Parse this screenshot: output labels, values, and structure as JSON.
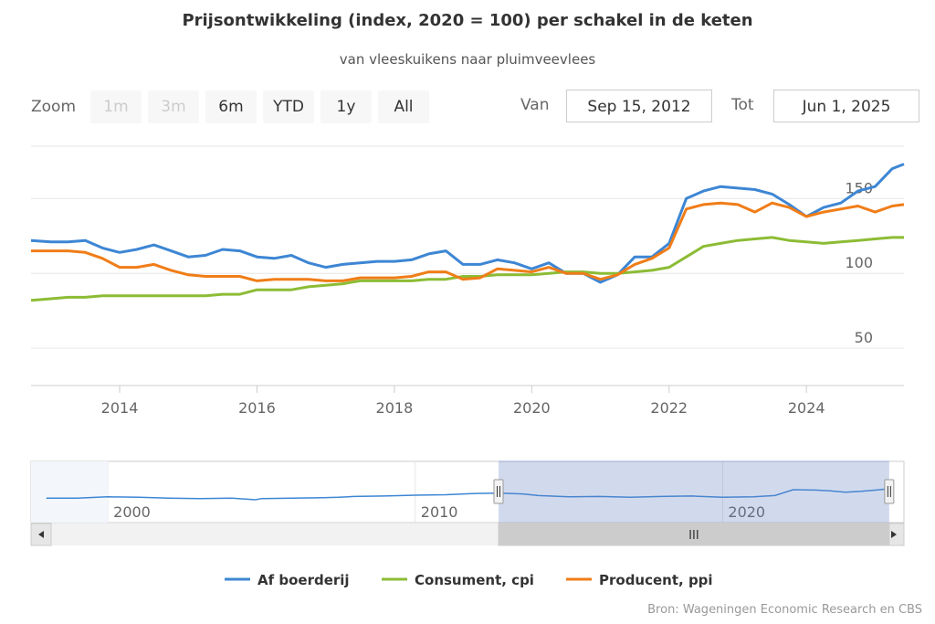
{
  "header": {
    "title": "Prijsontwikkeling (index, 2020 = 100) per schakel in de keten",
    "subtitle": "van vleeskuikens naar pluimveevlees"
  },
  "range_selector": {
    "zoom_label": "Zoom",
    "buttons": [
      {
        "label": "1m",
        "enabled": false
      },
      {
        "label": "3m",
        "enabled": false
      },
      {
        "label": "6m",
        "enabled": true
      },
      {
        "label": "YTD",
        "enabled": true
      },
      {
        "label": "1y",
        "enabled": true
      },
      {
        "label": "All",
        "enabled": true
      }
    ],
    "from_label": "Van",
    "from_value": "Sep 15, 2012",
    "to_label": "Tot",
    "to_value": "Jun 1, 2025"
  },
  "navigator": {
    "year_labels": [
      "2000",
      "2010",
      "2020"
    ],
    "scrollbar_grip": "III"
  },
  "credits": "Bron: Wageningen Economic Research en CBS",
  "colors": {
    "af_boerderij": "#3d86d4",
    "consument": "#8cbc35",
    "producent": "#f07d18",
    "grid": "#e6e6e6",
    "navigator_mask": "rgba(102,133,194,0.3)"
  },
  "chart_data": {
    "type": "line",
    "title": "Prijsontwikkeling (index, 2020 = 100) per schakel in de keten",
    "subtitle": "van vleeskuikens naar pluimveevlees",
    "xlim": [
      2012.71,
      2025.42
    ],
    "ylim": [
      25,
      185
    ],
    "x_tick_labels": [
      "2014",
      "2016",
      "2018",
      "2020",
      "2022",
      "2024"
    ],
    "y_tick_labels": [
      "50",
      "100",
      "150"
    ],
    "legend_position": "bottom-center",
    "grid": true,
    "series": [
      {
        "name": "Af boerderij",
        "points": [
          [
            2012.71,
            122
          ],
          [
            2013.0,
            121
          ],
          [
            2013.25,
            121
          ],
          [
            2013.5,
            122
          ],
          [
            2013.75,
            117
          ],
          [
            2014.0,
            114
          ],
          [
            2014.25,
            116
          ],
          [
            2014.5,
            119
          ],
          [
            2014.75,
            115
          ],
          [
            2015.0,
            111
          ],
          [
            2015.25,
            112
          ],
          [
            2015.5,
            116
          ],
          [
            2015.75,
            115
          ],
          [
            2016.0,
            111
          ],
          [
            2016.25,
            110
          ],
          [
            2016.5,
            112
          ],
          [
            2016.75,
            107
          ],
          [
            2017.0,
            104
          ],
          [
            2017.25,
            106
          ],
          [
            2017.5,
            107
          ],
          [
            2017.75,
            108
          ],
          [
            2018.0,
            108
          ],
          [
            2018.25,
            109
          ],
          [
            2018.5,
            113
          ],
          [
            2018.75,
            115
          ],
          [
            2019.0,
            106
          ],
          [
            2019.25,
            106
          ],
          [
            2019.5,
            109
          ],
          [
            2019.75,
            107
          ],
          [
            2020.0,
            103
          ],
          [
            2020.25,
            107
          ],
          [
            2020.5,
            100
          ],
          [
            2020.75,
            100
          ],
          [
            2021.0,
            94
          ],
          [
            2021.25,
            99
          ],
          [
            2021.5,
            111
          ],
          [
            2021.75,
            111
          ],
          [
            2022.0,
            120
          ],
          [
            2022.25,
            150
          ],
          [
            2022.5,
            155
          ],
          [
            2022.75,
            158
          ],
          [
            2023.0,
            157
          ],
          [
            2023.25,
            156
          ],
          [
            2023.5,
            153
          ],
          [
            2023.75,
            146
          ],
          [
            2024.0,
            138
          ],
          [
            2024.25,
            144
          ],
          [
            2024.5,
            147
          ],
          [
            2024.75,
            155
          ],
          [
            2025.0,
            158
          ],
          [
            2025.25,
            170
          ],
          [
            2025.42,
            173
          ]
        ]
      },
      {
        "name": "Consument, cpi",
        "points": [
          [
            2012.71,
            82
          ],
          [
            2013.0,
            83
          ],
          [
            2013.25,
            84
          ],
          [
            2013.5,
            84
          ],
          [
            2013.75,
            85
          ],
          [
            2014.0,
            85
          ],
          [
            2014.25,
            85
          ],
          [
            2014.5,
            85
          ],
          [
            2014.75,
            85
          ],
          [
            2015.0,
            85
          ],
          [
            2015.25,
            85
          ],
          [
            2015.5,
            86
          ],
          [
            2015.75,
            86
          ],
          [
            2016.0,
            89
          ],
          [
            2016.25,
            89
          ],
          [
            2016.5,
            89
          ],
          [
            2016.75,
            91
          ],
          [
            2017.0,
            92
          ],
          [
            2017.25,
            93
          ],
          [
            2017.5,
            95
          ],
          [
            2017.75,
            95
          ],
          [
            2018.0,
            95
          ],
          [
            2018.25,
            95
          ],
          [
            2018.5,
            96
          ],
          [
            2018.75,
            96
          ],
          [
            2019.0,
            98
          ],
          [
            2019.25,
            98
          ],
          [
            2019.5,
            99
          ],
          [
            2019.75,
            99
          ],
          [
            2020.0,
            99
          ],
          [
            2020.25,
            100
          ],
          [
            2020.5,
            101
          ],
          [
            2020.75,
            101
          ],
          [
            2021.0,
            100
          ],
          [
            2021.25,
            100
          ],
          [
            2021.5,
            101
          ],
          [
            2021.75,
            102
          ],
          [
            2022.0,
            104
          ],
          [
            2022.25,
            111
          ],
          [
            2022.5,
            118
          ],
          [
            2022.75,
            120
          ],
          [
            2023.0,
            122
          ],
          [
            2023.25,
            123
          ],
          [
            2023.5,
            124
          ],
          [
            2023.75,
            122
          ],
          [
            2024.0,
            121
          ],
          [
            2024.25,
            120
          ],
          [
            2024.5,
            121
          ],
          [
            2024.75,
            122
          ],
          [
            2025.0,
            123
          ],
          [
            2025.25,
            124
          ],
          [
            2025.42,
            124
          ]
        ]
      },
      {
        "name": "Producent, ppi",
        "points": [
          [
            2012.71,
            115
          ],
          [
            2013.0,
            115
          ],
          [
            2013.25,
            115
          ],
          [
            2013.5,
            114
          ],
          [
            2013.75,
            110
          ],
          [
            2014.0,
            104
          ],
          [
            2014.25,
            104
          ],
          [
            2014.5,
            106
          ],
          [
            2014.75,
            102
          ],
          [
            2015.0,
            99
          ],
          [
            2015.25,
            98
          ],
          [
            2015.5,
            98
          ],
          [
            2015.75,
            98
          ],
          [
            2016.0,
            95
          ],
          [
            2016.25,
            96
          ],
          [
            2016.5,
            96
          ],
          [
            2016.75,
            96
          ],
          [
            2017.0,
            95
          ],
          [
            2017.25,
            95
          ],
          [
            2017.5,
            97
          ],
          [
            2017.75,
            97
          ],
          [
            2018.0,
            97
          ],
          [
            2018.25,
            98
          ],
          [
            2018.5,
            101
          ],
          [
            2018.75,
            101
          ],
          [
            2019.0,
            96
          ],
          [
            2019.25,
            97
          ],
          [
            2019.5,
            103
          ],
          [
            2019.75,
            102
          ],
          [
            2020.0,
            101
          ],
          [
            2020.25,
            104
          ],
          [
            2020.5,
            100
          ],
          [
            2020.75,
            100
          ],
          [
            2021.0,
            96
          ],
          [
            2021.25,
            99
          ],
          [
            2021.5,
            106
          ],
          [
            2021.75,
            110
          ],
          [
            2022.0,
            117
          ],
          [
            2022.25,
            143
          ],
          [
            2022.5,
            146
          ],
          [
            2022.75,
            147
          ],
          [
            2023.0,
            146
          ],
          [
            2023.25,
            141
          ],
          [
            2023.5,
            147
          ],
          [
            2023.75,
            144
          ],
          [
            2024.0,
            138
          ],
          [
            2024.25,
            141
          ],
          [
            2024.5,
            143
          ],
          [
            2024.75,
            145
          ],
          [
            2025.0,
            141
          ],
          [
            2025.25,
            145
          ],
          [
            2025.42,
            146
          ]
        ]
      }
    ],
    "navigator": {
      "xlim": [
        1997.5,
        2025.9
      ],
      "selected_range": [
        2012.71,
        2025.42
      ],
      "ylim": [
        30,
        175
      ],
      "series_points": [
        [
          1998,
          88
        ],
        [
          1999,
          88
        ],
        [
          2000,
          91
        ],
        [
          2001,
          90
        ],
        [
          2002,
          88
        ],
        [
          2003,
          87
        ],
        [
          2004,
          88
        ],
        [
          2004.8,
          84
        ],
        [
          2005,
          87
        ],
        [
          2006,
          88
        ],
        [
          2007,
          89
        ],
        [
          2007.5,
          90
        ],
        [
          2008,
          92
        ],
        [
          2009,
          93
        ],
        [
          2010,
          95
        ],
        [
          2011,
          96
        ],
        [
          2012,
          99
        ],
        [
          2012.71,
          100
        ],
        [
          2013.5,
          98
        ],
        [
          2014,
          94
        ],
        [
          2015,
          91
        ],
        [
          2016,
          92
        ],
        [
          2017,
          90
        ],
        [
          2018,
          92
        ],
        [
          2019,
          93
        ],
        [
          2020,
          90
        ],
        [
          2021,
          91
        ],
        [
          2021.7,
          94
        ],
        [
          2022.3,
          108
        ],
        [
          2023,
          107
        ],
        [
          2023.5,
          105
        ],
        [
          2024,
          102
        ],
        [
          2024.5,
          104
        ],
        [
          2025,
          107
        ],
        [
          2025.4,
          110
        ]
      ]
    }
  }
}
